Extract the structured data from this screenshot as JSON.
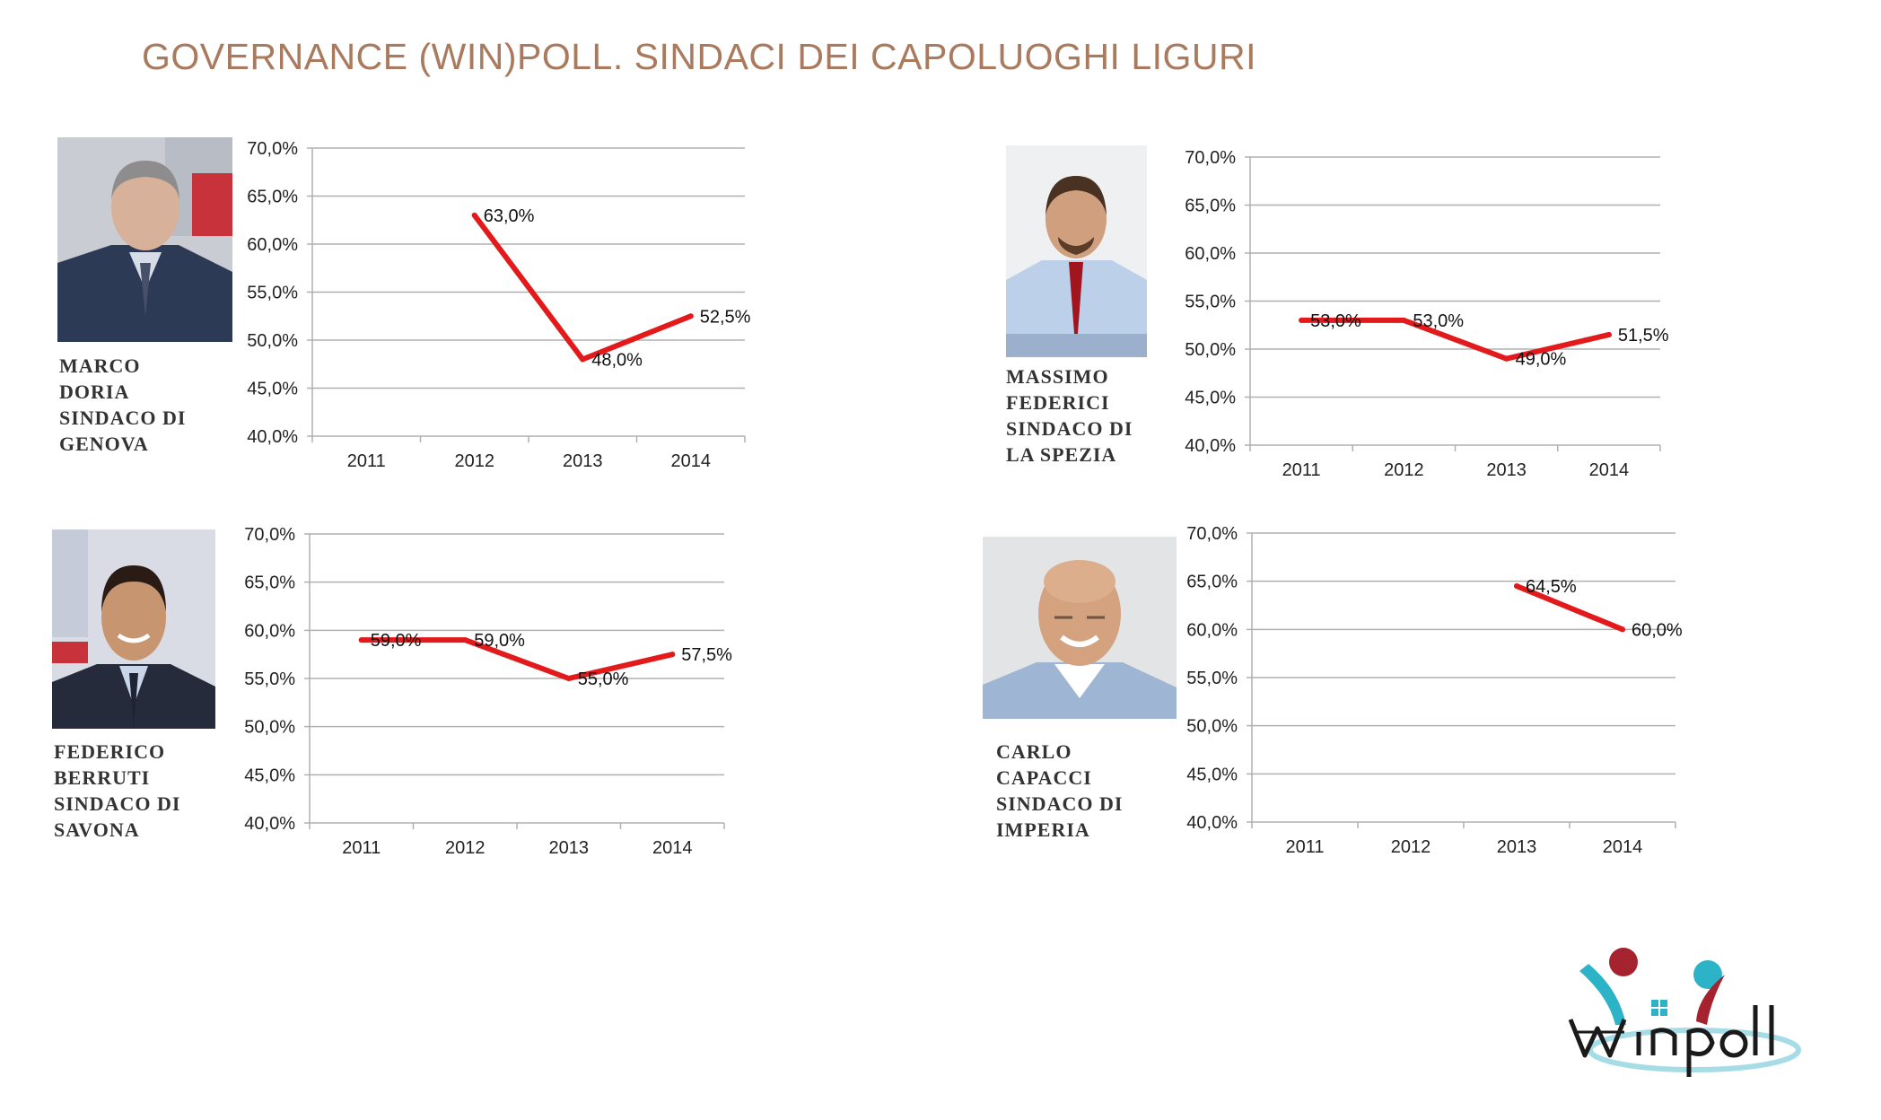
{
  "title": "GOVERNANCE (WIN)POLL. SINDACI DEI CAPOLUOGHI LIGURI",
  "colors": {
    "line": "#e31a1c",
    "title": "#a97a5e",
    "grid": "#b0b0b0",
    "logo_red": "#a5232f",
    "logo_teal": "#2cb3c8"
  },
  "logo": {
    "text": "Winpoll"
  },
  "panels": [
    {
      "caption": [
        "MARCO",
        "DORIA",
        "SINDACO DI",
        "GENOVA"
      ],
      "chart_data": {
        "type": "line",
        "categories": [
          "2011",
          "2012",
          "2013",
          "2014"
        ],
        "series": [
          {
            "values": [
              null,
              63.0,
              48.0,
              52.5
            ]
          }
        ],
        "data_labels": [
          "",
          "63,0%",
          "48,0%",
          "52,5%"
        ],
        "y_ticks": [
          "70,0%",
          "65,0%",
          "60,0%",
          "55,0%",
          "50,0%",
          "45,0%",
          "40,0%"
        ],
        "ylim": [
          40,
          70
        ],
        "grid": true
      }
    },
    {
      "caption": [
        "MASSIMO",
        "FEDERICI",
        "SINDACO DI",
        "LA SPEZIA"
      ],
      "chart_data": {
        "type": "line",
        "categories": [
          "2011",
          "2012",
          "2013",
          "2014"
        ],
        "series": [
          {
            "values": [
              53.0,
              53.0,
              49.0,
              51.5
            ]
          }
        ],
        "data_labels": [
          "53,0%",
          "53,0%",
          "49,0%",
          "51,5%"
        ],
        "y_ticks": [
          "70,0%",
          "65,0%",
          "60,0%",
          "55,0%",
          "50,0%",
          "45,0%",
          "40,0%"
        ],
        "ylim": [
          40,
          70
        ],
        "grid": true
      }
    },
    {
      "caption": [
        "FEDERICO",
        "BERRUTI",
        "SINDACO DI",
        "SAVONA"
      ],
      "chart_data": {
        "type": "line",
        "categories": [
          "2011",
          "2012",
          "2013",
          "2014"
        ],
        "series": [
          {
            "values": [
              59.0,
              59.0,
              55.0,
              57.5
            ]
          }
        ],
        "data_labels": [
          "59,0%",
          "59,0%",
          "55,0%",
          "57,5%"
        ],
        "y_ticks": [
          "70,0%",
          "65,0%",
          "60,0%",
          "55,0%",
          "50,0%",
          "45,0%",
          "40,0%"
        ],
        "ylim": [
          40,
          70
        ],
        "grid": true
      }
    },
    {
      "caption": [
        "CARLO",
        "CAPACCI",
        "SINDACO DI",
        "IMPERIA"
      ],
      "chart_data": {
        "type": "line",
        "categories": [
          "2011",
          "2012",
          "2013",
          "2014"
        ],
        "series": [
          {
            "values": [
              null,
              null,
              64.5,
              60.0
            ]
          }
        ],
        "data_labels": [
          "",
          "",
          "64,5%",
          "60,0%"
        ],
        "y_ticks": [
          "70,0%",
          "65,0%",
          "60,0%",
          "55,0%",
          "50,0%",
          "45,0%",
          "40,0%"
        ],
        "ylim": [
          40,
          70
        ],
        "grid": true
      }
    }
  ]
}
